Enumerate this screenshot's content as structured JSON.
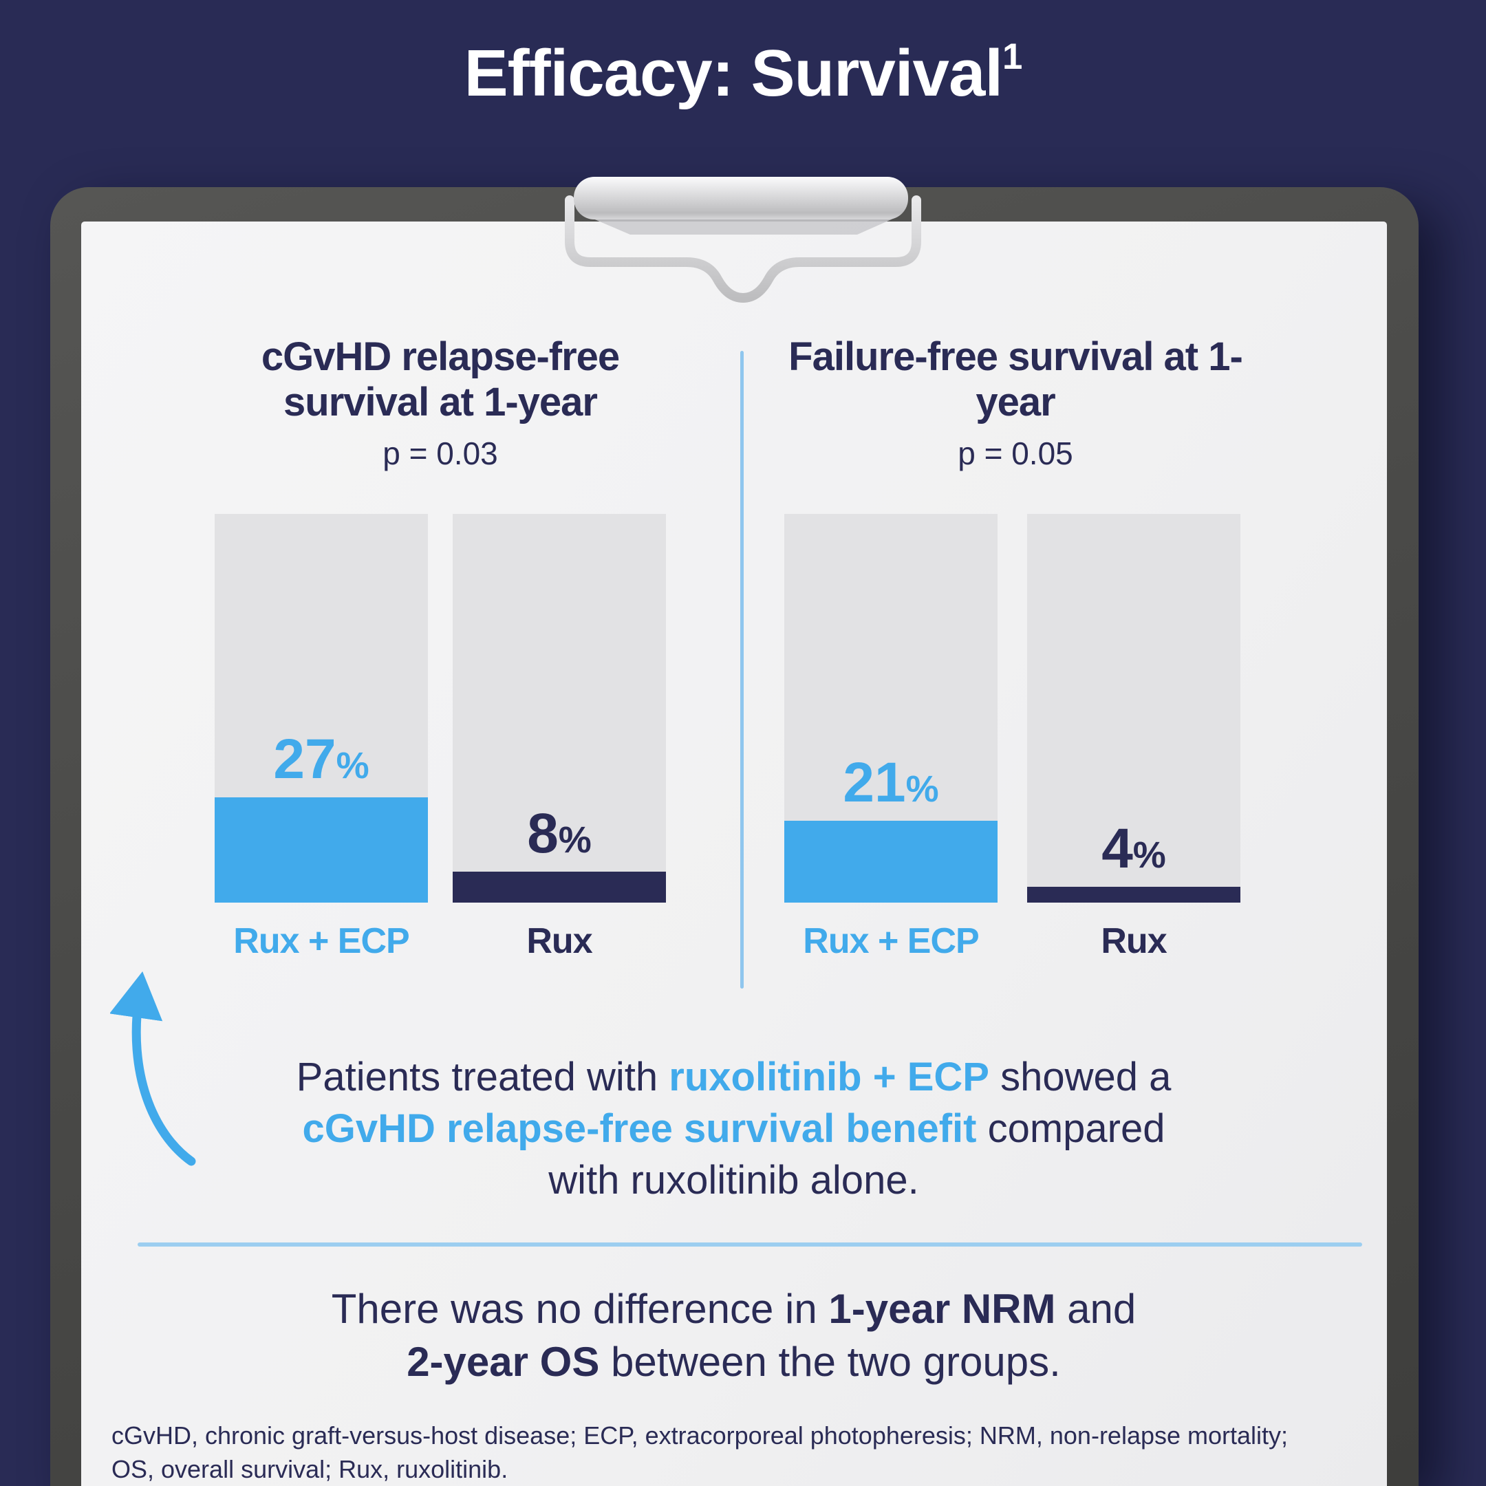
{
  "title": "Efficacy: Survival",
  "title_sup": "1",
  "colors": {
    "background_navy": "#292B55",
    "text_navy": "#2A2B55",
    "accent_blue": "#41AAEB",
    "divider_light_blue": "#9CCEF0",
    "bar_track_gray": "#E2E2E4",
    "paper": "#F2F2F3",
    "board_gray": "#4A4A48",
    "clip_silver": "#D6D6D8",
    "title_white": "#FFFFFF"
  },
  "charts": [
    {
      "title": "cGvHD relapse-free survival at 1-year",
      "p_value": "p = 0.03",
      "bars": [
        {
          "label": "Rux + ECP",
          "value": 27,
          "display": "27",
          "suffix": "%"
        },
        {
          "label": "Rux",
          "value": 8,
          "display": "8",
          "suffix": "%"
        }
      ]
    },
    {
      "title": "Failure-free survival at 1-year",
      "p_value": "p = 0.05",
      "bars": [
        {
          "label": "Rux + ECP",
          "value": 21,
          "display": "21",
          "suffix": "%"
        },
        {
          "label": "Rux",
          "value": 4,
          "display": "4",
          "suffix": "%"
        }
      ]
    }
  ],
  "chart_data": [
    {
      "type": "bar",
      "title": "cGvHD relapse-free survival at 1-year",
      "subtitle": "p = 0.03",
      "categories": [
        "Rux + ECP",
        "Rux"
      ],
      "values": [
        27,
        8
      ],
      "unit": "%",
      "ylim": [
        0,
        100
      ],
      "grid": false,
      "legend": false,
      "bar_colors": [
        "#41AAEB",
        "#2A2B55"
      ]
    },
    {
      "type": "bar",
      "title": "Failure-free survival at 1-year",
      "subtitle": "p = 0.05",
      "categories": [
        "Rux + ECP",
        "Rux"
      ],
      "values": [
        21,
        4
      ],
      "unit": "%",
      "ylim": [
        0,
        100
      ],
      "grid": false,
      "legend": false,
      "bar_colors": [
        "#41AAEB",
        "#2A2B55"
      ]
    }
  ],
  "callout": {
    "line1_pre": "Patients treated with ",
    "line1_em": "ruxolitinib + ECP",
    "line1_post": " showed a",
    "line2_em": "cGvHD relapse-free survival benefit",
    "line2_post": " compared",
    "line3": "with ruxolitinib alone."
  },
  "secondary": {
    "line1_pre": "There was no difference in ",
    "line1_em": "1-year NRM",
    "line1_post": " and",
    "line2_em": "2-year OS",
    "line2_post": " between the two groups."
  },
  "footnote": {
    "line1": "cGvHD, chronic graft-versus-host disease; ECP, extracorporeal photopheresis; NRM, non-relapse mortality;",
    "line2": "OS, overall survival; Rux, ruxolitinib."
  }
}
